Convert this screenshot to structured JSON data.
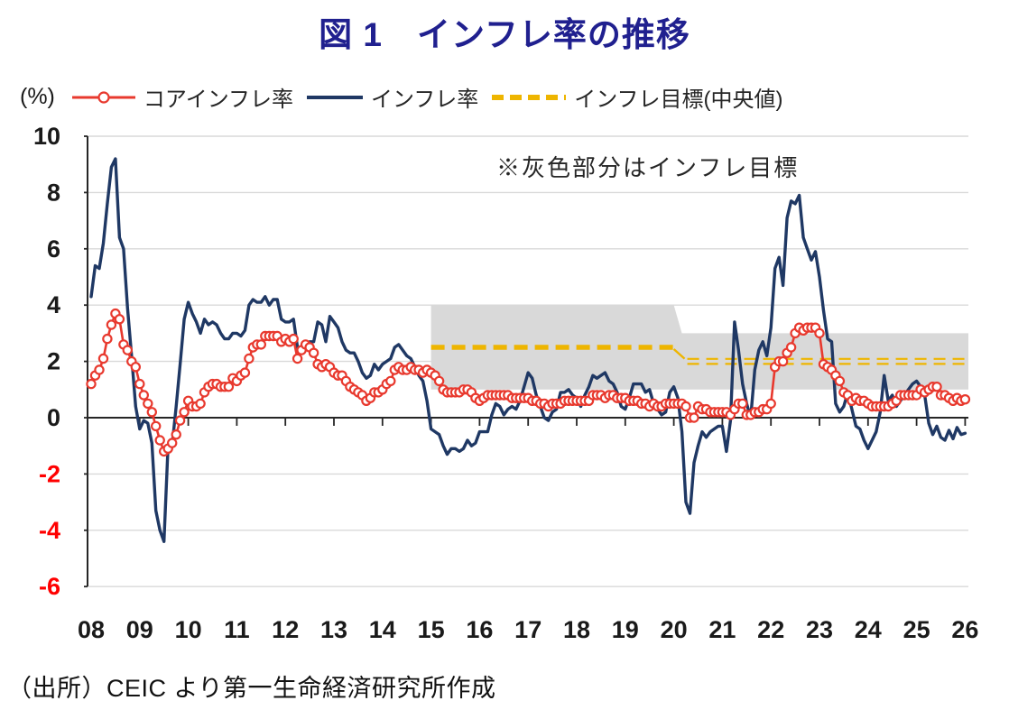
{
  "title": "図 1　インフレ率の推移",
  "axis_unit": "(%)",
  "legend": {
    "items": [
      {
        "key": "core",
        "label": "コアインフレ率",
        "color": "#e8392e",
        "marker": "line-circle"
      },
      {
        "key": "headline",
        "label": "インフレ率",
        "color": "#1f3864",
        "marker": "line"
      },
      {
        "key": "target",
        "label": "インフレ目標(中央値)",
        "color": "#eeb500",
        "marker": "dashed-line"
      }
    ]
  },
  "annotation": "※灰色部分はインフレ目標",
  "source": "（出所）CEIC より第一生命経済研究所作成",
  "chart_data": {
    "type": "line",
    "title": "図 1　インフレ率の推移",
    "ylabel": "(%)",
    "ylim": [
      -6,
      10
    ],
    "y_ticks": [
      10,
      8,
      6,
      4,
      2,
      0,
      -2,
      -4,
      -6
    ],
    "negative_tick_color": "#ff0000",
    "grid": true,
    "gridline_color": "#d9d9d9",
    "legend_position": "top",
    "x_start": "2008-01",
    "x_frequency": "monthly",
    "x_tick_labels": [
      "08",
      "09",
      "10",
      "11",
      "12",
      "13",
      "14",
      "15",
      "16",
      "17",
      "18",
      "19",
      "20",
      "21",
      "22",
      "23",
      "24",
      "25",
      "26"
    ],
    "annotation": "※灰色部分はインフレ目標",
    "target_band": {
      "fill": "#d9d9d9",
      "description": "インフレ目標レンジ（灰色）",
      "segments": [
        {
          "start": "2015-01",
          "end": "2019-12",
          "low": 1.0,
          "high": 4.0,
          "midpoint": 2.5
        },
        {
          "start": "2020-03",
          "end": "2026-02",
          "low": 1.0,
          "high": 3.0,
          "midpoint": 2.0
        }
      ]
    },
    "series": [
      {
        "id": "core",
        "name": "コアインフレ率",
        "color": "#e8392e",
        "marker": "open-circle",
        "values": [
          1.2,
          1.5,
          1.7,
          2.1,
          2.8,
          3.3,
          3.7,
          3.5,
          2.6,
          2.4,
          2.0,
          1.8,
          1.2,
          0.8,
          0.5,
          0.2,
          -0.3,
          -0.8,
          -1.2,
          -1.1,
          -0.9,
          -0.6,
          -0.1,
          0.2,
          0.6,
          0.4,
          0.4,
          0.5,
          0.9,
          1.1,
          1.2,
          1.2,
          1.1,
          1.1,
          1.1,
          1.4,
          1.3,
          1.5,
          1.6,
          2.1,
          2.5,
          2.6,
          2.6,
          2.9,
          2.9,
          2.9,
          2.9,
          2.7,
          2.8,
          2.7,
          2.8,
          2.1,
          2.4,
          2.6,
          2.5,
          2.3,
          1.9,
          1.8,
          1.9,
          1.8,
          1.6,
          1.5,
          1.5,
          1.3,
          1.1,
          1.0,
          0.9,
          0.8,
          0.6,
          0.7,
          0.9,
          0.9,
          1.0,
          1.2,
          1.3,
          1.7,
          1.8,
          1.7,
          1.7,
          1.8,
          1.7,
          1.7,
          1.6,
          1.7,
          1.6,
          1.5,
          1.3,
          1.0,
          0.9,
          0.9,
          0.9,
          0.9,
          1.0,
          1.0,
          0.9,
          0.7,
          0.6,
          0.7,
          0.8,
          0.8,
          0.8,
          0.8,
          0.8,
          0.8,
          0.7,
          0.7,
          0.7,
          0.7,
          0.7,
          0.6,
          0.6,
          0.5,
          0.5,
          0.4,
          0.5,
          0.5,
          0.5,
          0.6,
          0.6,
          0.6,
          0.6,
          0.6,
          0.6,
          0.6,
          0.8,
          0.8,
          0.8,
          0.7,
          0.8,
          0.8,
          0.7,
          0.7,
          0.7,
          0.6,
          0.6,
          0.6,
          0.5,
          0.5,
          0.4,
          0.5,
          0.4,
          0.4,
          0.5,
          0.5,
          0.5,
          0.5,
          0.5,
          0.4,
          0.0,
          0.0,
          0.4,
          0.3,
          0.3,
          0.2,
          0.2,
          0.2,
          0.2,
          0.2,
          0.1,
          0.3,
          0.5,
          0.5,
          0.1,
          0.1,
          0.2,
          0.2,
          0.3,
          0.3,
          0.5,
          1.8,
          2.0,
          2.0,
          2.3,
          2.5,
          3.0,
          3.2,
          3.1,
          3.2,
          3.2,
          3.2,
          3.0,
          1.9,
          1.8,
          1.7,
          1.5,
          1.3,
          0.9,
          0.8,
          0.6,
          0.7,
          0.6,
          0.6,
          0.5,
          0.4,
          0.4,
          0.4,
          0.4,
          0.4,
          0.5,
          0.6,
          0.8,
          0.8,
          0.8,
          0.8,
          0.8,
          1.0,
          0.9,
          1.0,
          1.1,
          1.1,
          0.8,
          0.8,
          0.7,
          0.6,
          0.7,
          0.6,
          0.65
        ]
      },
      {
        "id": "headline",
        "name": "インフレ率",
        "color": "#1f3864",
        "marker": "none",
        "values": [
          4.3,
          5.4,
          5.3,
          6.2,
          7.6,
          8.9,
          9.2,
          6.4,
          6.0,
          3.9,
          2.2,
          0.4,
          -0.4,
          -0.1,
          -0.2,
          -0.9,
          -3.3,
          -4.0,
          -4.4,
          -1.0,
          -1.0,
          0.4,
          1.9,
          3.5,
          4.1,
          3.7,
          3.4,
          3.0,
          3.5,
          3.3,
          3.4,
          3.3,
          3.0,
          2.8,
          2.8,
          3.0,
          3.0,
          2.9,
          3.1,
          4.0,
          4.2,
          4.1,
          4.1,
          4.3,
          4.0,
          4.2,
          4.2,
          3.5,
          3.4,
          3.4,
          3.5,
          2.5,
          2.5,
          2.6,
          2.7,
          2.7,
          3.4,
          3.3,
          2.7,
          3.6,
          3.4,
          3.2,
          2.7,
          2.4,
          2.3,
          2.3,
          2.0,
          1.6,
          1.4,
          1.5,
          1.9,
          1.7,
          1.9,
          2.0,
          2.1,
          2.5,
          2.6,
          2.4,
          2.2,
          2.1,
          1.8,
          1.5,
          1.3,
          0.6,
          -0.4,
          -0.5,
          -0.6,
          -1.0,
          -1.3,
          -1.1,
          -1.1,
          -1.2,
          -1.1,
          -0.8,
          -1.0,
          -0.9,
          -0.5,
          -0.5,
          -0.5,
          0.1,
          0.5,
          0.4,
          0.1,
          0.3,
          0.4,
          0.3,
          0.6,
          1.1,
          1.6,
          1.4,
          0.8,
          0.4,
          0.0,
          -0.1,
          0.2,
          0.3,
          0.9,
          0.9,
          1.0,
          0.8,
          0.7,
          0.4,
          0.8,
          1.1,
          1.5,
          1.4,
          1.5,
          1.6,
          1.3,
          1.2,
          0.9,
          0.4,
          0.3,
          0.7,
          1.2,
          1.2,
          1.2,
          0.9,
          1.0,
          0.5,
          0.3,
          0.1,
          0.2,
          0.9,
          1.1,
          0.7,
          -0.5,
          -3.0,
          -3.4,
          -1.6,
          -1.0,
          -0.5,
          -0.7,
          -0.5,
          -0.4,
          -0.3,
          -0.3,
          -1.2,
          -0.1,
          3.4,
          2.4,
          1.2,
          0.5,
          0.0,
          1.7,
          2.4,
          2.7,
          2.2,
          3.2,
          5.3,
          5.7,
          4.7,
          7.1,
          7.7,
          7.6,
          7.9,
          6.4,
          6.0,
          5.6,
          5.9,
          5.0,
          3.8,
          2.8,
          2.7,
          0.5,
          0.2,
          0.4,
          0.9,
          0.3,
          -0.3,
          -0.4,
          -0.8,
          -1.1,
          -0.8,
          -0.5,
          0.2,
          1.5,
          0.6,
          0.8,
          0.4,
          0.6,
          0.8,
          1.0,
          1.2,
          1.3,
          1.1,
          0.8,
          -0.2,
          -0.6,
          -0.3,
          -0.7,
          -0.8,
          -0.45,
          -0.75,
          -0.35,
          -0.6,
          -0.55
        ]
      }
    ]
  }
}
